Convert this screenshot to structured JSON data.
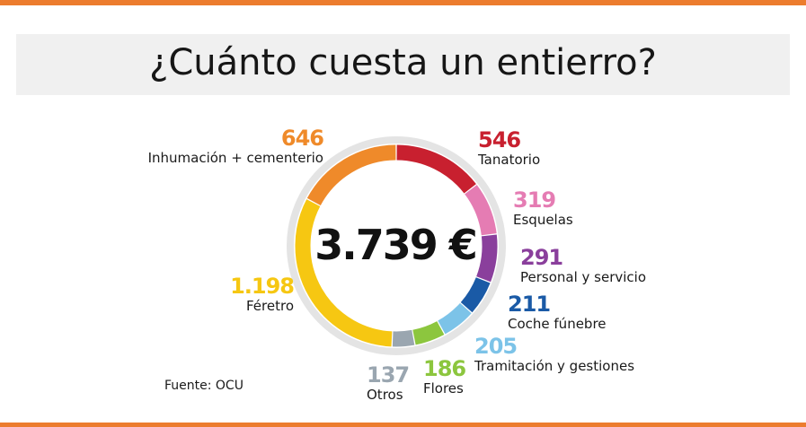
{
  "title": "¿Cuánto cuesta un entierro?",
  "source": "Fuente: OCU",
  "accent_color": "#ec7c2e",
  "chart_data": {
    "type": "pie",
    "style": "donut",
    "title": "¿Cuánto cuesta un entierro?",
    "total_label": "3.739 €",
    "total": 3739,
    "unit": "€",
    "slices": [
      {
        "label": "Tanatorio",
        "value": 546,
        "value_label": "546",
        "color": "#c8202f"
      },
      {
        "label": "Esquelas",
        "value": 319,
        "value_label": "319",
        "color": "#e57cb3"
      },
      {
        "label": "Personal y servicio",
        "value": 291,
        "value_label": "291",
        "color": "#8a3f9c"
      },
      {
        "label": "Coche fúnebre",
        "value": 211,
        "value_label": "211",
        "color": "#1a5aa6"
      },
      {
        "label": "Tramitación y gestiones",
        "value": 205,
        "value_label": "205",
        "color": "#7cc3e8"
      },
      {
        "label": "Flores",
        "value": 186,
        "value_label": "186",
        "color": "#8cc63e"
      },
      {
        "label": "Otros",
        "value": 137,
        "value_label": "137",
        "color": "#9aa6b0"
      },
      {
        "label": "Féretro",
        "value": 1198,
        "value_label": "1.198",
        "color": "#f6c712"
      },
      {
        "label": "Inhumación + cementerio",
        "value": 646,
        "value_label": "646",
        "color": "#ef8a2a"
      }
    ]
  }
}
